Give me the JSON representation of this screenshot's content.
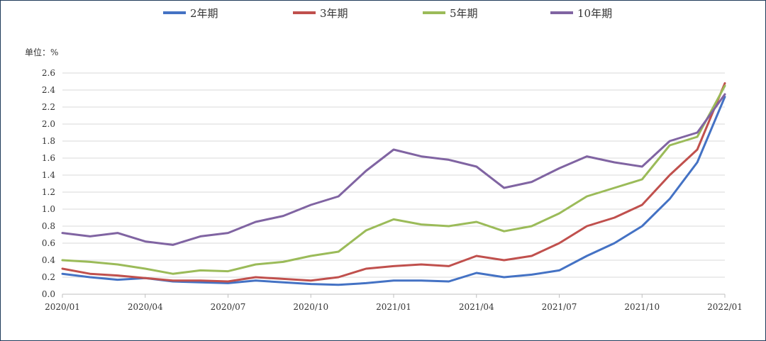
{
  "chart_data": {
    "type": "line",
    "unit_label": "单位：%",
    "ylim": [
      0,
      2.6
    ],
    "yticks": [
      0.0,
      0.2,
      0.4,
      0.6,
      0.8,
      1.0,
      1.2,
      1.4,
      1.6,
      1.8,
      2.0,
      2.2,
      2.4,
      2.6
    ],
    "ytick_labels": [
      "0.0",
      "0.2",
      "0.4",
      "0.6",
      "0.8",
      "1.0",
      "1.2",
      "1.4",
      "1.6",
      "1.8",
      "2.0",
      "2.2",
      "2.4",
      "2.6"
    ],
    "xticks": [
      "2020/01",
      "2020/04",
      "2020/07",
      "2020/10",
      "2021/01",
      "2021/04",
      "2021/07",
      "2021/10",
      "2022/01"
    ],
    "x": [
      "2020/01",
      "2020/02",
      "2020/03",
      "2020/04",
      "2020/05",
      "2020/06",
      "2020/07",
      "2020/08",
      "2020/09",
      "2020/10",
      "2020/11",
      "2020/12",
      "2021/01",
      "2021/02",
      "2021/03",
      "2021/04",
      "2021/05",
      "2021/06",
      "2021/07",
      "2021/08",
      "2021/09",
      "2021/10",
      "2021/11",
      "2021/12",
      "2022/01"
    ],
    "grid": "horizontal",
    "legend_position": "top",
    "series": [
      {
        "name": "2年期",
        "color": "#4472c4",
        "values": [
          0.24,
          0.2,
          0.17,
          0.19,
          0.15,
          0.14,
          0.13,
          0.16,
          0.14,
          0.12,
          0.11,
          0.13,
          0.16,
          0.16,
          0.15,
          0.25,
          0.2,
          0.23,
          0.28,
          0.45,
          0.6,
          0.8,
          1.12,
          1.55,
          2.32
        ]
      },
      {
        "name": "3年期",
        "color": "#c0504d",
        "values": [
          0.3,
          0.24,
          0.22,
          0.19,
          0.16,
          0.16,
          0.15,
          0.2,
          0.18,
          0.16,
          0.2,
          0.3,
          0.33,
          0.35,
          0.33,
          0.45,
          0.4,
          0.45,
          0.6,
          0.8,
          0.9,
          1.05,
          1.4,
          1.7,
          2.48
        ]
      },
      {
        "name": "5年期",
        "color": "#9bbb59",
        "values": [
          0.4,
          0.38,
          0.35,
          0.3,
          0.24,
          0.28,
          0.27,
          0.35,
          0.38,
          0.45,
          0.5,
          0.75,
          0.88,
          0.82,
          0.8,
          0.85,
          0.74,
          0.8,
          0.95,
          1.15,
          1.25,
          1.35,
          1.75,
          1.85,
          2.45
        ]
      },
      {
        "name": "10年期",
        "color": "#8064a2",
        "values": [
          0.72,
          0.68,
          0.72,
          0.62,
          0.58,
          0.68,
          0.72,
          0.85,
          0.92,
          1.05,
          1.15,
          1.45,
          1.7,
          1.62,
          1.58,
          1.5,
          1.25,
          1.32,
          1.48,
          1.62,
          1.55,
          1.5,
          1.8,
          1.9,
          2.35
        ]
      }
    ]
  }
}
